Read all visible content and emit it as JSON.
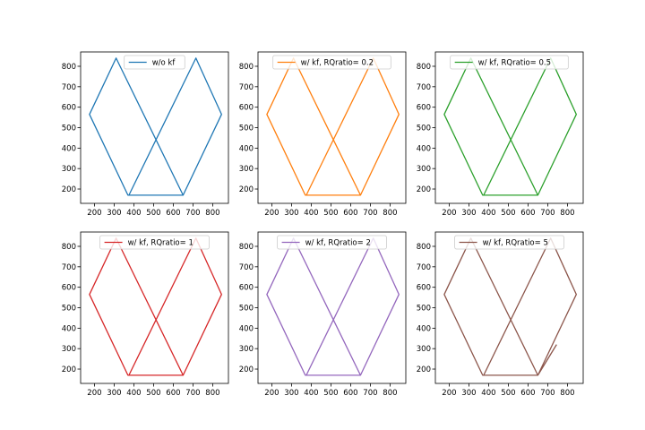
{
  "chart_data": [
    {
      "type": "line",
      "legend": "w/o kf",
      "color": "#1f77b4",
      "legend_position": "upper center",
      "xlim": [
        130,
        880
      ],
      "ylim": [
        130,
        870
      ],
      "xticks": [
        200,
        300,
        400,
        500,
        600,
        700,
        800
      ],
      "yticks": [
        200,
        300,
        400,
        500,
        600,
        700,
        800
      ],
      "x": [
        650,
        370,
        175,
        310,
        650,
        845,
        715,
        375,
        650
      ],
      "y": [
        170,
        170,
        565,
        840,
        170,
        565,
        840,
        170,
        170
      ]
    },
    {
      "type": "line",
      "legend": "w/ kf, RQratio= 0.2",
      "color": "#ff7f0e",
      "legend_position": "upper center",
      "xlim": [
        130,
        880
      ],
      "ylim": [
        130,
        870
      ],
      "xticks": [
        200,
        300,
        400,
        500,
        600,
        700,
        800
      ],
      "yticks": [
        200,
        300,
        400,
        500,
        600,
        700,
        800
      ],
      "x": [
        650,
        370,
        175,
        310,
        650,
        845,
        715,
        375,
        650
      ],
      "y": [
        170,
        170,
        565,
        840,
        170,
        565,
        840,
        170,
        170
      ]
    },
    {
      "type": "line",
      "legend": "w/ kf, RQratio= 0.5",
      "color": "#2ca02c",
      "legend_position": "upper center",
      "xlim": [
        130,
        880
      ],
      "ylim": [
        130,
        870
      ],
      "xticks": [
        200,
        300,
        400,
        500,
        600,
        700,
        800
      ],
      "yticks": [
        200,
        300,
        400,
        500,
        600,
        700,
        800
      ],
      "x": [
        650,
        370,
        175,
        310,
        650,
        845,
        715,
        375,
        650
      ],
      "y": [
        170,
        170,
        565,
        840,
        170,
        565,
        840,
        170,
        170
      ]
    },
    {
      "type": "line",
      "legend": "w/ kf, RQratio= 1",
      "color": "#d62728",
      "legend_position": "upper center",
      "xlim": [
        130,
        880
      ],
      "ylim": [
        130,
        870
      ],
      "xticks": [
        200,
        300,
        400,
        500,
        600,
        700,
        800
      ],
      "yticks": [
        200,
        300,
        400,
        500,
        600,
        700,
        800
      ],
      "x": [
        650,
        370,
        175,
        310,
        650,
        845,
        715,
        375,
        650
      ],
      "y": [
        170,
        170,
        565,
        840,
        170,
        565,
        840,
        170,
        170
      ]
    },
    {
      "type": "line",
      "legend": "w/ kf, RQratio= 2",
      "color": "#9467bd",
      "legend_position": "upper center",
      "xlim": [
        130,
        880
      ],
      "ylim": [
        130,
        870
      ],
      "xticks": [
        200,
        300,
        400,
        500,
        600,
        700,
        800
      ],
      "yticks": [
        200,
        300,
        400,
        500,
        600,
        700,
        800
      ],
      "x": [
        650,
        370,
        175,
        310,
        650,
        845,
        715,
        375,
        650
      ],
      "y": [
        170,
        170,
        565,
        840,
        170,
        565,
        840,
        170,
        170
      ]
    },
    {
      "type": "line",
      "legend": "w/ kf, RQratio= 5",
      "color": "#8c564b",
      "legend_position": "upper center",
      "xlim": [
        130,
        880
      ],
      "ylim": [
        130,
        870
      ],
      "xticks": [
        200,
        300,
        400,
        500,
        600,
        700,
        800
      ],
      "yticks": [
        200,
        300,
        400,
        500,
        600,
        700,
        800
      ],
      "x": [
        650,
        370,
        175,
        310,
        650,
        845,
        715,
        375,
        650,
        745
      ],
      "y": [
        170,
        170,
        565,
        840,
        170,
        565,
        840,
        170,
        170,
        320
      ]
    }
  ]
}
